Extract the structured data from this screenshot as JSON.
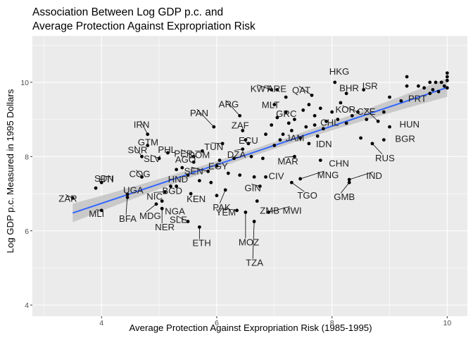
{
  "chart_data": {
    "type": "scatter",
    "title_lines": [
      "Association Between Log GDP p.c. and",
      "Average Protection Against Expropriation Risk"
    ],
    "xlabel": "Average Protection Against Expropriation Risk (1985-1995)",
    "ylabel": "Log GDP p.c. Measured in 1995 Dollars",
    "xlim": [
      2.8,
      10.35
    ],
    "ylim": [
      3.7,
      11.25
    ],
    "x_ticks": [
      4,
      6,
      8,
      10
    ],
    "y_ticks": [
      4,
      6,
      8,
      10
    ],
    "grid": true,
    "legend": "none",
    "colors": {
      "panel": "#ebebeb",
      "grid": "#ffffff",
      "points": "#000000",
      "fit_line": "#3366ff",
      "ribbon": "#bdbdbd"
    },
    "fit": {
      "method": "linear",
      "x_range": [
        3.5,
        10.0
      ],
      "intercept": 4.66,
      "slope": 0.52,
      "ci_halfwidth_ends": 0.25,
      "ci_halfwidth_mid": 0.09
    },
    "points": [
      {
        "x": 3.5,
        "y": 6.88,
        "label": "ZAR"
      },
      {
        "x": 4.0,
        "y": 6.55,
        "label": "MLI"
      },
      {
        "x": 3.9,
        "y": 7.15,
        "label": "SDN"
      },
      {
        "x": 4.0,
        "y": 7.3,
        "label": "HTI"
      },
      {
        "x": 4.45,
        "y": 6.9,
        "label": "UGA"
      },
      {
        "x": 4.45,
        "y": 6.98,
        "label": "BFA"
      },
      {
        "x": 4.7,
        "y": 7.45,
        "label": "COG"
      },
      {
        "x": 4.7,
        "y": 8.0,
        "label": "SUR"
      },
      {
        "x": 4.8,
        "y": 8.6,
        "label": "IRN"
      },
      {
        "x": 4.8,
        "y": 8.3,
        "label": "GTM"
      },
      {
        "x": 4.95,
        "y": 6.72,
        "label": "MDG"
      },
      {
        "x": 5.0,
        "y": 7.95,
        "label": "SLV"
      },
      {
        "x": 5.05,
        "y": 6.8,
        "label": "NGA"
      },
      {
        "x": 5.05,
        "y": 6.6,
        "label": "NER"
      },
      {
        "x": 5.15,
        "y": 8.1,
        "label": "PHL"
      },
      {
        "x": 5.1,
        "y": 7.05,
        "label": "NIC"
      },
      {
        "x": 5.2,
        "y": 7.2,
        "label": "BGD"
      },
      {
        "x": 5.3,
        "y": 7.65,
        "label": "HND"
      },
      {
        "x": 5.4,
        "y": 7.7,
        "label": "AGO"
      },
      {
        "x": 5.5,
        "y": 6.25,
        "label": "SLE"
      },
      {
        "x": 5.55,
        "y": 7.0,
        "label": "KEN"
      },
      {
        "x": 5.6,
        "y": 8.0,
        "label": "PER"
      },
      {
        "x": 5.7,
        "y": 6.1,
        "label": "ETH"
      },
      {
        "x": 5.75,
        "y": 8.15,
        "label": "DOM"
      },
      {
        "x": 5.85,
        "y": 7.6,
        "label": "SEN"
      },
      {
        "x": 5.95,
        "y": 8.8,
        "label": "PAN"
      },
      {
        "x": 6.0,
        "y": 7.75,
        "label": "EGY"
      },
      {
        "x": 6.1,
        "y": 8.35,
        "label": "TUN"
      },
      {
        "x": 6.15,
        "y": 7.1,
        "label": "PAK"
      },
      {
        "x": 6.35,
        "y": 6.55,
        "label": "YEM"
      },
      {
        "x": 6.4,
        "y": 9.1,
        "label": "ARG"
      },
      {
        "x": 6.45,
        "y": 8.7,
        "label": "ZAF"
      },
      {
        "x": 6.45,
        "y": 8.2,
        "label": "DZA"
      },
      {
        "x": 6.55,
        "y": 8.35,
        "label": "ECU"
      },
      {
        "x": 6.5,
        "y": 6.5,
        "label": "MOZ"
      },
      {
        "x": 6.65,
        "y": 6.25,
        "label": "TZA"
      },
      {
        "x": 6.7,
        "y": 6.8,
        "label": "ZMB"
      },
      {
        "x": 6.75,
        "y": 7.2,
        "label": "GIN"
      },
      {
        "x": 6.85,
        "y": 7.45,
        "label": "CIV"
      },
      {
        "x": 6.9,
        "y": 6.5,
        "label": "MWI"
      },
      {
        "x": 6.95,
        "y": 9.8,
        "label": "KWT"
      },
      {
        "x": 7.0,
        "y": 9.4,
        "label": "MLT"
      },
      {
        "x": 7.05,
        "y": 9.8,
        "label": "ARE"
      },
      {
        "x": 7.1,
        "y": 8.45,
        "label": "JAM"
      },
      {
        "x": 7.2,
        "y": 9.2,
        "label": "GRC"
      },
      {
        "x": 7.3,
        "y": 7.3,
        "label": "TGO"
      },
      {
        "x": 7.35,
        "y": 8.0,
        "label": "MAR"
      },
      {
        "x": 7.45,
        "y": 7.4,
        "label": "MNG"
      },
      {
        "x": 7.6,
        "y": 8.35,
        "label": "IDN"
      },
      {
        "x": 7.65,
        "y": 9.65,
        "label": "QAT"
      },
      {
        "x": 7.7,
        "y": 8.85,
        "label": "CHL"
      },
      {
        "x": 7.8,
        "y": 7.9,
        "label": "CHN"
      },
      {
        "x": 8.05,
        "y": 10.0,
        "label": "HKG"
      },
      {
        "x": 8.25,
        "y": 9.7,
        "label": "BHR"
      },
      {
        "x": 8.3,
        "y": 7.3,
        "label": "GMB"
      },
      {
        "x": 8.3,
        "y": 7.38,
        "label": "IND"
      },
      {
        "x": 8.45,
        "y": 9.2,
        "label": "KOR"
      },
      {
        "x": 8.55,
        "y": 9.8,
        "label": "ISR"
      },
      {
        "x": 8.7,
        "y": 8.35,
        "label": "RUS"
      },
      {
        "x": 8.9,
        "y": 8.45,
        "label": "BGR"
      },
      {
        "x": 8.8,
        "y": 8.95,
        "label": "CZE"
      },
      {
        "x": 9.0,
        "y": 8.8,
        "label": "HUN"
      },
      {
        "x": 9.2,
        "y": 9.5,
        "label": "PRT"
      },
      {
        "x": 5.3,
        "y": 7.2
      },
      {
        "x": 5.5,
        "y": 7.5
      },
      {
        "x": 5.6,
        "y": 7.85
      },
      {
        "x": 5.7,
        "y": 7.35
      },
      {
        "x": 5.9,
        "y": 7.3
      },
      {
        "x": 6.0,
        "y": 6.95
      },
      {
        "x": 6.05,
        "y": 7.9
      },
      {
        "x": 6.2,
        "y": 7.55
      },
      {
        "x": 6.3,
        "y": 7.95
      },
      {
        "x": 6.4,
        "y": 7.5
      },
      {
        "x": 6.5,
        "y": 8.45
      },
      {
        "x": 6.6,
        "y": 8.0
      },
      {
        "x": 6.65,
        "y": 7.45
      },
      {
        "x": 6.8,
        "y": 7.95
      },
      {
        "x": 6.85,
        "y": 8.6
      },
      {
        "x": 6.95,
        "y": 8.85
      },
      {
        "x": 7.0,
        "y": 8.3
      },
      {
        "x": 7.05,
        "y": 9.05
      },
      {
        "x": 7.15,
        "y": 8.6
      },
      {
        "x": 7.2,
        "y": 9.6
      },
      {
        "x": 7.25,
        "y": 8.9
      },
      {
        "x": 7.3,
        "y": 8.7
      },
      {
        "x": 7.35,
        "y": 9.0
      },
      {
        "x": 7.45,
        "y": 8.5
      },
      {
        "x": 7.5,
        "y": 9.25
      },
      {
        "x": 7.55,
        "y": 8.8
      },
      {
        "x": 7.6,
        "y": 9.4
      },
      {
        "x": 7.7,
        "y": 9.1
      },
      {
        "x": 7.75,
        "y": 8.55
      },
      {
        "x": 7.8,
        "y": 9.3
      },
      {
        "x": 7.85,
        "y": 8.75
      },
      {
        "x": 7.9,
        "y": 8.95
      },
      {
        "x": 8.0,
        "y": 9.2
      },
      {
        "x": 8.1,
        "y": 9.0
      },
      {
        "x": 8.15,
        "y": 9.45
      },
      {
        "x": 8.25,
        "y": 8.9
      },
      {
        "x": 8.35,
        "y": 9.1
      },
      {
        "x": 8.5,
        "y": 8.5
      },
      {
        "x": 8.6,
        "y": 9.0
      },
      {
        "x": 8.9,
        "y": 9.2
      },
      {
        "x": 9.0,
        "y": 9.6
      },
      {
        "x": 9.3,
        "y": 9.9
      },
      {
        "x": 9.3,
        "y": 10.15
      },
      {
        "x": 9.5,
        "y": 9.9
      },
      {
        "x": 9.6,
        "y": 9.85
      },
      {
        "x": 9.7,
        "y": 9.7
      },
      {
        "x": 9.7,
        "y": 10.0
      },
      {
        "x": 9.75,
        "y": 9.8
      },
      {
        "x": 9.8,
        "y": 10.0
      },
      {
        "x": 9.85,
        "y": 9.75
      },
      {
        "x": 9.9,
        "y": 10.0
      },
      {
        "x": 9.95,
        "y": 9.9
      },
      {
        "x": 10.0,
        "y": 9.85
      },
      {
        "x": 10.0,
        "y": 10.05
      },
      {
        "x": 10.0,
        "y": 10.15
      },
      {
        "x": 10.0,
        "y": 10.25
      }
    ]
  }
}
